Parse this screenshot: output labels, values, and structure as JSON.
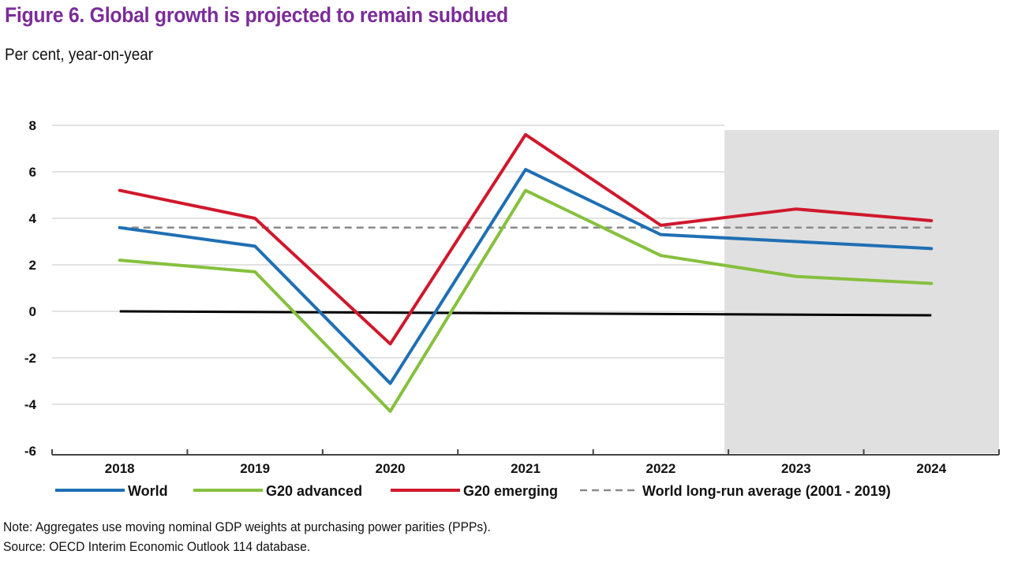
{
  "header": {
    "title": "Figure 6. Global growth is projected to remain subdued",
    "subtitle": "Per cent, year-on-year"
  },
  "footer": {
    "note": "Note: Aggregates use moving nominal GDP weights at purchasing power parities (PPPs).",
    "source": "Source: OECD Interim Economic Outlook 114 database."
  },
  "chart_data": {
    "type": "line",
    "title": "Figure 6. Global growth is projected to remain subdued",
    "subtitle": "Per cent, year-on-year",
    "xlabel": "",
    "ylabel": "Per cent, year-on-year",
    "categories": [
      "2018",
      "2019",
      "2020",
      "2021",
      "2022",
      "2023",
      "2024"
    ],
    "yticks": [
      8,
      6,
      4,
      2,
      0,
      -2,
      -4,
      -6
    ],
    "ylim": [
      -6,
      8
    ],
    "grid": true,
    "legend_position": "bottom",
    "projection_shading": {
      "from": "2023",
      "to": "2024",
      "color": "#e0e0e0"
    },
    "zero_line_color": "#000000",
    "series": [
      {
        "name": "World",
        "color": "#1f6fb4",
        "style": "solid",
        "values": [
          3.6,
          2.8,
          -3.1,
          6.1,
          3.3,
          3.0,
          2.7
        ]
      },
      {
        "name": "G20 advanced",
        "color": "#86c03d",
        "style": "solid",
        "values": [
          2.2,
          1.7,
          -4.3,
          5.2,
          2.4,
          1.5,
          1.2
        ]
      },
      {
        "name": "G20 emerging",
        "color": "#d0182c",
        "style": "solid",
        "values": [
          5.2,
          4.0,
          -1.4,
          7.6,
          3.7,
          4.4,
          3.9
        ]
      },
      {
        "name": "World long-run average (2001 - 2019)",
        "color": "#8a8a8a",
        "style": "dashed",
        "values": [
          3.6,
          3.6,
          3.6,
          3.6,
          3.6,
          3.6,
          3.6
        ]
      }
    ]
  }
}
